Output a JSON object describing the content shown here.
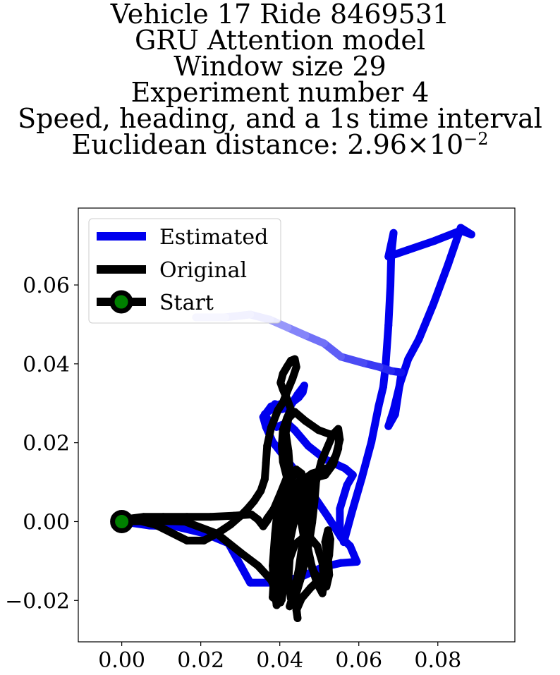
{
  "chart_data": {
    "type": "line",
    "title_lines": [
      "Vehicle 17 Ride 8469531",
      "GRU Attention model",
      "Window size 29",
      "Experiment number 4",
      "Speed, heading, and a 1s time interval"
    ],
    "title_distance_prefix": "Euclidean distance: 2.96",
    "title_distance_times": "×",
    "title_distance_base": "10",
    "title_distance_exponent": "−2",
    "xlim": [
      -0.011,
      0.0995
    ],
    "ylim": [
      -0.0305,
      0.0795
    ],
    "x_ticks": [
      0.0,
      0.02,
      0.04,
      0.06,
      0.08
    ],
    "x_tick_labels": [
      "0.00",
      "0.02",
      "0.04",
      "0.06",
      "0.08"
    ],
    "y_ticks": [
      -0.02,
      0.0,
      0.02,
      0.04,
      0.06
    ],
    "y_tick_labels": [
      "−0.02",
      "0.00",
      "0.02",
      "0.04",
      "0.06"
    ],
    "legend_placement": "upper-left",
    "series": [
      {
        "name": "Estimated",
        "color": "#0000ee",
        "fade_to": "#d0d0ff",
        "points": [
          [
            0.0,
            0.0
          ],
          [
            0.007,
            -0.001
          ],
          [
            0.0135,
            -0.0012
          ],
          [
            0.021,
            -0.003
          ],
          [
            0.027,
            -0.0055
          ],
          [
            0.0325,
            -0.0155
          ],
          [
            0.038,
            -0.0155
          ],
          [
            0.045,
            -0.0142
          ],
          [
            0.051,
            -0.0115
          ],
          [
            0.0555,
            -0.0105
          ],
          [
            0.0595,
            -0.0102
          ],
          [
            0.0578,
            -0.0062
          ],
          [
            0.0555,
            -0.004
          ],
          [
            0.0522,
            0.0012
          ],
          [
            0.0488,
            0.0062
          ],
          [
            0.0452,
            0.0112
          ],
          [
            0.0415,
            0.016
          ],
          [
            0.0382,
            0.0202
          ],
          [
            0.0365,
            0.024
          ],
          [
            0.0358,
            0.0265
          ],
          [
            0.0378,
            0.0292
          ],
          [
            0.0402,
            0.0298
          ],
          [
            0.0422,
            0.0292
          ],
          [
            0.0435,
            0.0305
          ],
          [
            0.0448,
            0.0315
          ],
          [
            0.0458,
            0.0328
          ],
          [
            0.0462,
            0.0345
          ],
          [
            0.0445,
            0.0322
          ],
          [
            0.0425,
            0.029
          ],
          [
            0.0405,
            0.0285
          ],
          [
            0.0388,
            0.0298
          ],
          [
            0.0375,
            0.0282
          ],
          [
            0.0362,
            0.0272
          ],
          [
            0.0372,
            0.0255
          ],
          [
            0.0392,
            0.024
          ],
          [
            0.0418,
            0.025
          ],
          [
            0.0438,
            0.0232
          ],
          [
            0.0472,
            0.0192
          ],
          [
            0.0515,
            0.0158
          ],
          [
            0.0565,
            0.0135
          ],
          [
            0.0585,
            0.0118
          ],
          [
            0.057,
            0.0092
          ],
          [
            0.0552,
            0.0032
          ],
          [
            0.0552,
            -0.0022
          ],
          [
            0.0562,
            -0.0052
          ],
          [
            0.0582,
            0.0022
          ],
          [
            0.0608,
            0.0112
          ],
          [
            0.0632,
            0.0202
          ],
          [
            0.065,
            0.0292
          ],
          [
            0.0662,
            0.0342
          ],
          [
            0.0668,
            0.0398
          ],
          [
            0.0675,
            0.0498
          ],
          [
            0.068,
            0.0598
          ],
          [
            0.0682,
            0.0675
          ],
          [
            0.0688,
            0.0732
          ],
          [
            0.0675,
            0.0672
          ],
          [
            0.0722,
            0.0688
          ],
          [
            0.0792,
            0.0712
          ],
          [
            0.0858,
            0.0738
          ],
          [
            0.0885,
            0.0728
          ],
          [
            0.0858,
            0.0745
          ],
          [
            0.0826,
            0.0652
          ],
          [
            0.0789,
            0.0552
          ],
          [
            0.0752,
            0.0462
          ],
          [
            0.0725,
            0.0412
          ],
          [
            0.0705,
            0.0352
          ],
          [
            0.0688,
            0.0282
          ],
          [
            0.0675,
            0.0242
          ],
          [
            0.0692,
            0.0272
          ],
          [
            0.0708,
            0.0378
          ],
          [
            0.0682,
            0.0382
          ],
          [
            0.0652,
            0.0392
          ],
          [
            0.0612,
            0.0402
          ],
          [
            0.0555,
            0.0418
          ],
          [
            0.0512,
            0.0452
          ],
          [
            0.0465,
            0.0472
          ],
          [
            0.042,
            0.0492
          ],
          [
            0.0375,
            0.0512
          ],
          [
            0.0325,
            0.0525
          ],
          [
            0.0262,
            0.0518
          ],
          [
            0.0188,
            0.0518
          ]
        ]
      },
      {
        "name": "Original",
        "color": "#000000",
        "points": [
          [
            0.0,
            0.0
          ],
          [
            0.008,
            0.0002
          ],
          [
            0.016,
            0.0
          ],
          [
            0.024,
            -0.003
          ],
          [
            0.03,
            -0.0078
          ],
          [
            0.0345,
            -0.0112
          ],
          [
            0.0378,
            -0.0148
          ],
          [
            0.0395,
            -0.0185
          ],
          [
            0.0402,
            -0.0205
          ],
          [
            0.0398,
            -0.0178
          ],
          [
            0.0402,
            -0.0128
          ],
          [
            0.0412,
            -0.0068
          ],
          [
            0.0418,
            -0.0008
          ],
          [
            0.0422,
            0.0052
          ],
          [
            0.0428,
            0.0102
          ],
          [
            0.0442,
            0.0132
          ],
          [
            0.0455,
            0.0122
          ],
          [
            0.0448,
            0.0092
          ],
          [
            0.0438,
            0.0042
          ],
          [
            0.0428,
            -0.0012
          ],
          [
            0.0422,
            -0.0062
          ],
          [
            0.0418,
            -0.0112
          ],
          [
            0.0408,
            -0.0162
          ],
          [
            0.0395,
            -0.0202
          ],
          [
            0.0382,
            -0.0192
          ],
          [
            0.0385,
            -0.0142
          ],
          [
            0.0392,
            -0.0088
          ],
          [
            0.0398,
            -0.0042
          ],
          [
            0.0402,
            0.0008
          ],
          [
            0.0412,
            0.0058
          ],
          [
            0.0418,
            0.0092
          ],
          [
            0.0405,
            0.0052
          ],
          [
            0.0392,
            0.0008
          ],
          [
            0.0388,
            -0.0032
          ],
          [
            0.0385,
            -0.0072
          ],
          [
            0.0382,
            -0.0112
          ],
          [
            0.0385,
            -0.0162
          ],
          [
            0.0392,
            -0.0212
          ],
          [
            0.0405,
            -0.0198
          ],
          [
            0.0412,
            -0.0148
          ],
          [
            0.0418,
            -0.0098
          ],
          [
            0.0425,
            -0.0052
          ],
          [
            0.0435,
            -0.0005
          ],
          [
            0.0448,
            0.0042
          ],
          [
            0.0462,
            0.0082
          ],
          [
            0.0472,
            0.0112
          ],
          [
            0.0478,
            0.0082
          ],
          [
            0.0472,
            0.0032
          ],
          [
            0.0462,
            -0.0022
          ],
          [
            0.0455,
            -0.0072
          ],
          [
            0.0448,
            -0.0122
          ],
          [
            0.0435,
            -0.0182
          ],
          [
            0.0425,
            -0.0215
          ],
          [
            0.0438,
            -0.0195
          ],
          [
            0.0452,
            -0.0148
          ],
          [
            0.0465,
            -0.0098
          ],
          [
            0.0475,
            -0.0048
          ],
          [
            0.0482,
            -0.0002
          ],
          [
            0.0488,
            0.0052
          ],
          [
            0.0492,
            0.0102
          ],
          [
            0.0505,
            0.0152
          ],
          [
            0.0522,
            0.0192
          ],
          [
            0.0535,
            0.0222
          ],
          [
            0.0548,
            0.0235
          ],
          [
            0.0552,
            0.0208
          ],
          [
            0.0542,
            0.0168
          ],
          [
            0.0525,
            0.0138
          ],
          [
            0.0502,
            0.0128
          ],
          [
            0.0482,
            0.0122
          ],
          [
            0.0462,
            0.0108
          ],
          [
            0.0445,
            0.0098
          ],
          [
            0.0425,
            0.0082
          ],
          [
            0.0402,
            0.0062
          ],
          [
            0.0385,
            0.0032
          ],
          [
            0.0368,
            0.0002
          ],
          [
            0.0358,
            -0.0012
          ],
          [
            0.0368,
            0.0008
          ],
          [
            0.0385,
            0.0032
          ],
          [
            0.0402,
            0.0072
          ],
          [
            0.0418,
            0.0112
          ],
          [
            0.0425,
            0.0138
          ],
          [
            0.0422,
            0.0178
          ],
          [
            0.0415,
            0.0225
          ],
          [
            0.0422,
            0.0262
          ],
          [
            0.0438,
            0.0278
          ],
          [
            0.0465,
            0.0255
          ],
          [
            0.0498,
            0.0232
          ],
          [
            0.0525,
            0.0222
          ],
          [
            0.055,
            0.0215
          ],
          [
            0.0548,
            0.0185
          ],
          [
            0.0535,
            0.0145
          ],
          [
            0.0515,
            0.0118
          ],
          [
            0.0492,
            0.0112
          ],
          [
            0.0478,
            0.0092
          ],
          [
            0.0465,
            0.0052
          ],
          [
            0.0458,
            0.0012
          ],
          [
            0.0462,
            -0.0032
          ],
          [
            0.0472,
            -0.0072
          ],
          [
            0.0482,
            -0.0118
          ],
          [
            0.0495,
            -0.0158
          ],
          [
            0.0508,
            -0.0182
          ],
          [
            0.0512,
            -0.0155
          ],
          [
            0.0508,
            -0.0105
          ],
          [
            0.0495,
            -0.0062
          ],
          [
            0.0478,
            -0.0042
          ],
          [
            0.0458,
            -0.0042
          ],
          [
            0.0438,
            -0.0058
          ],
          [
            0.0425,
            -0.0095
          ],
          [
            0.0422,
            -0.0145
          ],
          [
            0.0428,
            -0.0195
          ],
          [
            0.0442,
            -0.0218
          ],
          [
            0.0445,
            -0.0245
          ],
          [
            0.0442,
            -0.0225
          ],
          [
            0.0455,
            -0.0195
          ],
          [
            0.0478,
            -0.0168
          ],
          [
            0.0502,
            -0.0145
          ],
          [
            0.0518,
            -0.0118
          ],
          [
            0.0525,
            -0.0085
          ],
          [
            0.0528,
            -0.0045
          ],
          [
            0.0522,
            -0.0022
          ],
          [
            0.0515,
            -0.0052
          ],
          [
            0.0522,
            -0.0092
          ],
          [
            0.0525,
            -0.0135
          ],
          [
            0.0518,
            -0.0165
          ],
          [
            0.0502,
            -0.0155
          ],
          [
            0.0485,
            -0.0125
          ],
          [
            0.0472,
            -0.0085
          ],
          [
            0.0462,
            -0.0045
          ],
          [
            0.0455,
            -0.0005
          ],
          [
            0.0448,
            0.0035
          ],
          [
            0.0438,
            0.0072
          ],
          [
            0.0418,
            0.0112
          ],
          [
            0.0408,
            0.0152
          ],
          [
            0.0405,
            0.0192
          ],
          [
            0.0408,
            0.0232
          ],
          [
            0.0418,
            0.0262
          ],
          [
            0.0428,
            0.0285
          ],
          [
            0.0418,
            0.0312
          ],
          [
            0.0408,
            0.0335
          ],
          [
            0.0402,
            0.0352
          ],
          [
            0.0408,
            0.0375
          ],
          [
            0.0418,
            0.0392
          ],
          [
            0.0428,
            0.0408
          ],
          [
            0.0438,
            0.0412
          ],
          [
            0.0442,
            0.0392
          ],
          [
            0.0432,
            0.0362
          ],
          [
            0.0418,
            0.0328
          ],
          [
            0.0408,
            0.0302
          ],
          [
            0.0395,
            0.0282
          ],
          [
            0.0378,
            0.0238
          ],
          [
            0.0368,
            0.0192
          ],
          [
            0.0365,
            0.0148
          ],
          [
            0.0362,
            0.0108
          ],
          [
            0.0352,
            0.0078
          ],
          [
            0.0335,
            0.0052
          ],
          [
            0.0318,
            0.0032
          ],
          [
            0.0298,
            0.0012
          ],
          [
            0.0275,
            -0.0008
          ],
          [
            0.0245,
            -0.0028
          ],
          [
            0.0208,
            -0.0048
          ],
          [
            0.0165,
            -0.0048
          ],
          [
            0.0125,
            -0.0028
          ],
          [
            0.0085,
            -0.0008
          ],
          [
            0.0045,
            0.0002
          ],
          [
            0.0025,
            0.0008
          ],
          [
            0.0055,
            0.0012
          ],
          [
            0.0105,
            0.0012
          ],
          [
            0.0165,
            0.0012
          ],
          [
            0.0225,
            0.0012
          ],
          [
            0.0285,
            0.0015
          ],
          [
            0.0328,
            0.0018
          ],
          [
            0.0345,
            0.0005
          ],
          [
            0.0355,
            -0.0008
          ]
        ]
      }
    ],
    "start_point": {
      "name": "Start",
      "x": 0.0,
      "y": 0.0,
      "marker_color": "#008000",
      "edge_color": "#000000"
    }
  }
}
